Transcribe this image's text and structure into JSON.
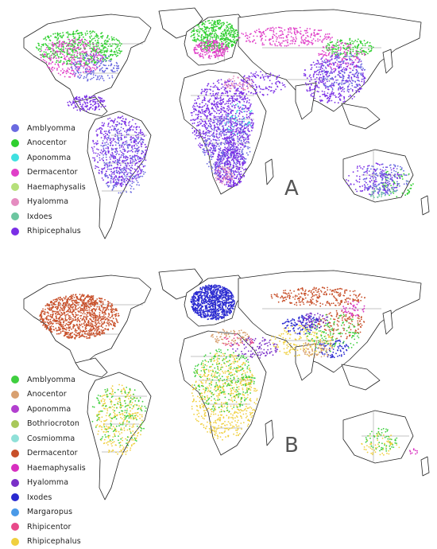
{
  "panels": [
    {
      "label": "A",
      "legend": [
        {
          "name": "Amblyomma",
          "color": "#6a6ae0"
        },
        {
          "name": "Anocentor",
          "color": "#2fcf2f"
        },
        {
          "name": "Aponomma",
          "color": "#3fe0e0"
        },
        {
          "name": "Dermacentor",
          "color": "#e03fc8"
        },
        {
          "name": "Haemaphysalis",
          "color": "#b6e07a"
        },
        {
          "name": "Hyalomma",
          "color": "#e58cc0"
        },
        {
          "name": "Ixdoes",
          "color": "#6dc6a0"
        },
        {
          "name": "Rhipicephalus",
          "color": "#7a2fe6"
        }
      ]
    },
    {
      "label": "B",
      "legend": [
        {
          "name": "Amblyomma",
          "color": "#3fcf3f"
        },
        {
          "name": "Anocentor",
          "color": "#d8a070"
        },
        {
          "name": "Aponomma",
          "color": "#b23fcf"
        },
        {
          "name": "Bothriocroton",
          "color": "#a8c85a"
        },
        {
          "name": "Cosmiomma",
          "color": "#8fe0d8"
        },
        {
          "name": "Dermacentor",
          "color": "#c8502a"
        },
        {
          "name": "Haemaphysalis",
          "color": "#d82fc0"
        },
        {
          "name": "Hyalomma",
          "color": "#7a30c8"
        },
        {
          "name": "Ixodes",
          "color": "#2a2ad0"
        },
        {
          "name": "Margaropus",
          "color": "#4a9ae8"
        },
        {
          "name": "Rhipicentor",
          "color": "#e84a8a"
        },
        {
          "name": "Rhipicephalus",
          "color": "#f0d040"
        }
      ]
    }
  ]
}
